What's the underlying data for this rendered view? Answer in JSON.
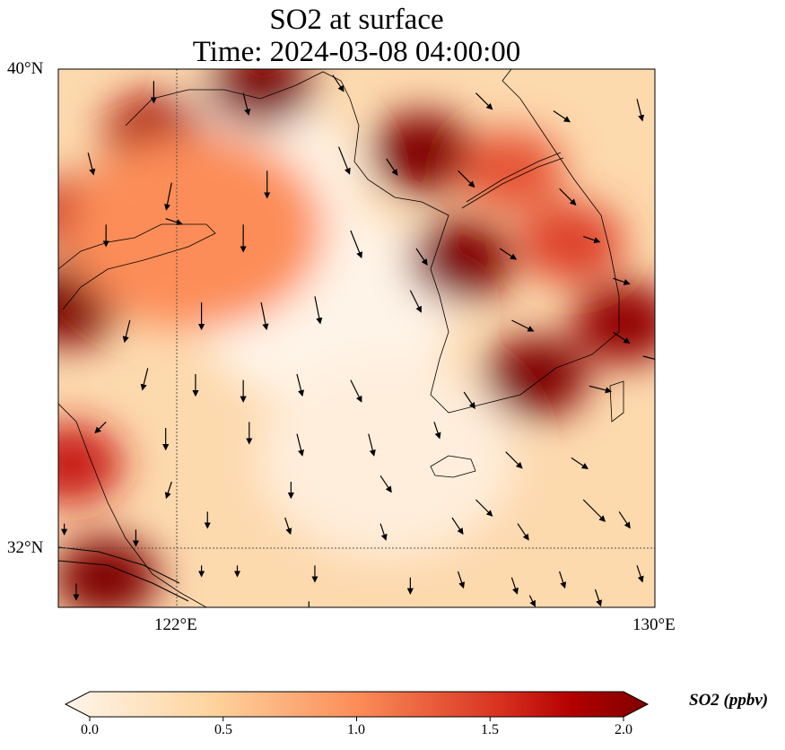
{
  "chart_data": {
    "type": "heatmap",
    "title": "SO2 at surface",
    "subtitle": "Time: 2024-03-08 04:00:00",
    "lon_range": [
      120,
      130
    ],
    "lat_range": [
      31,
      40
    ],
    "x_ticks": [
      {
        "value": 122,
        "label": "122°E"
      },
      {
        "value": 130,
        "label": "130°E"
      }
    ],
    "y_ticks": [
      {
        "value": 40,
        "label": "40°N"
      },
      {
        "value": 32,
        "label": "32°N"
      }
    ],
    "gridlines": {
      "lon": [
        122
      ],
      "lat": [
        32
      ]
    },
    "background_value": 0.3,
    "hotspots": [
      {
        "lon": 123.4,
        "lat": 39.7,
        "value": 2.0
      },
      {
        "lon": 126.1,
        "lat": 38.6,
        "value": 2.0
      },
      {
        "lon": 126.75,
        "lat": 36.8,
        "value": 2.0
      },
      {
        "lon": 128.0,
        "lat": 34.85,
        "value": 2.0
      },
      {
        "lon": 129.5,
        "lat": 35.75,
        "value": 1.9
      },
      {
        "lon": 120.15,
        "lat": 36.05,
        "value": 2.0
      },
      {
        "lon": 120.8,
        "lat": 31.5,
        "value": 2.0
      },
      {
        "lon": 120.2,
        "lat": 33.4,
        "value": 1.6
      },
      {
        "lon": 121.65,
        "lat": 38.9,
        "value": 1.8
      },
      {
        "lon": 121.3,
        "lat": 37.5,
        "value": 1.5
      },
      {
        "lon": 120.4,
        "lat": 37.55,
        "value": 1.6
      },
      {
        "lon": 128.6,
        "lat": 37.1,
        "value": 1.4
      },
      {
        "lon": 127.6,
        "lat": 38.3,
        "value": 1.3
      },
      {
        "lon": 122.3,
        "lat": 37.3,
        "value": 1.0
      }
    ],
    "low_zones": [
      {
        "lon": 124.5,
        "lat": 36.0,
        "value": 0.02
      },
      {
        "lon": 123.0,
        "lat": 38.0,
        "value": 0.05
      },
      {
        "lon": 125.5,
        "lat": 33.5,
        "value": 0.1
      }
    ],
    "wind_vectors": [
      [
        121.6,
        39.8,
        0,
        -0.4
      ],
      [
        123.1,
        39.6,
        0.1,
        -0.4
      ],
      [
        124.6,
        39.9,
        0.2,
        -0.3
      ],
      [
        127.0,
        39.6,
        0.3,
        -0.3
      ],
      [
        128.3,
        39.3,
        0.3,
        -0.2
      ],
      [
        129.7,
        39.5,
        0.1,
        -0.4
      ],
      [
        120.5,
        38.6,
        0.1,
        -0.4
      ],
      [
        121.9,
        38.1,
        -0.1,
        -0.5
      ],
      [
        123.5,
        38.3,
        0,
        -0.5
      ],
      [
        124.7,
        38.7,
        0.2,
        -0.5
      ],
      [
        125.5,
        38.5,
        0.2,
        -0.3
      ],
      [
        126.7,
        38.3,
        0.3,
        -0.3
      ],
      [
        128.4,
        38.0,
        0.3,
        -0.3
      ],
      [
        120.8,
        37.4,
        0,
        -0.4
      ],
      [
        121.8,
        37.5,
        0.3,
        -0.1
      ],
      [
        123.1,
        37.4,
        0,
        -0.5
      ],
      [
        124.9,
        37.3,
        0.2,
        -0.5
      ],
      [
        126.0,
        37.0,
        0.2,
        -0.3
      ],
      [
        127.4,
        37.0,
        0.3,
        -0.2
      ],
      [
        128.8,
        37.2,
        0.3,
        -0.1
      ],
      [
        129.3,
        36.5,
        0.3,
        -0.1
      ],
      [
        121.2,
        35.8,
        -0.1,
        -0.4
      ],
      [
        122.4,
        36.1,
        0,
        -0.5
      ],
      [
        123.4,
        36.1,
        0.1,
        -0.5
      ],
      [
        124.3,
        36.2,
        0.1,
        -0.5
      ],
      [
        125.9,
        36.3,
        0.2,
        -0.4
      ],
      [
        127.6,
        35.8,
        0.4,
        -0.2
      ],
      [
        129.3,
        35.6,
        0.3,
        -0.2
      ],
      [
        121.5,
        35.0,
        -0.1,
        -0.4
      ],
      [
        122.3,
        34.9,
        0,
        -0.4
      ],
      [
        123.1,
        34.8,
        0,
        -0.4
      ],
      [
        124.0,
        34.9,
        0.1,
        -0.4
      ],
      [
        124.9,
        34.8,
        0.2,
        -0.4
      ],
      [
        126.8,
        34.6,
        0.2,
        -0.3
      ],
      [
        128.9,
        34.7,
        0.4,
        -0.1
      ],
      [
        129.8,
        35.2,
        0.4,
        -0.1
      ],
      [
        120.8,
        34.1,
        -0.2,
        -0.2
      ],
      [
        121.8,
        34.0,
        0,
        -0.4
      ],
      [
        123.2,
        34.1,
        0,
        -0.4
      ],
      [
        124.0,
        33.9,
        0.1,
        -0.4
      ],
      [
        125.2,
        33.9,
        0.1,
        -0.4
      ],
      [
        126.3,
        34.1,
        0.1,
        -0.3
      ],
      [
        127.5,
        33.6,
        0.3,
        -0.3
      ],
      [
        128.6,
        33.5,
        0.3,
        -0.2
      ],
      [
        121.9,
        33.1,
        -0.1,
        -0.3
      ],
      [
        123.9,
        33.1,
        0,
        -0.3
      ],
      [
        125.4,
        33.2,
        0.2,
        -0.3
      ],
      [
        127.0,
        32.8,
        0.3,
        -0.3
      ],
      [
        128.8,
        32.8,
        0.4,
        -0.4
      ],
      [
        129.4,
        32.6,
        0.2,
        -0.3
      ],
      [
        120.1,
        32.4,
        0,
        -0.2
      ],
      [
        121.3,
        32.3,
        0,
        -0.3
      ],
      [
        122.5,
        32.6,
        0,
        -0.3
      ],
      [
        123.8,
        32.5,
        0.1,
        -0.3
      ],
      [
        125.4,
        32.4,
        0.1,
        -0.3
      ],
      [
        126.6,
        32.5,
        0.2,
        -0.3
      ],
      [
        127.7,
        32.4,
        0.2,
        -0.3
      ],
      [
        120.3,
        31.4,
        0,
        -0.3
      ],
      [
        122.4,
        31.7,
        0,
        -0.2
      ],
      [
        123.0,
        31.7,
        0,
        -0.2
      ],
      [
        124.3,
        31.7,
        0,
        -0.3
      ],
      [
        125.9,
        31.5,
        0,
        -0.3
      ],
      [
        126.7,
        31.6,
        0.1,
        -0.3
      ],
      [
        127.6,
        31.5,
        0.1,
        -0.3
      ],
      [
        128.4,
        31.6,
        0.1,
        -0.3
      ],
      [
        129.0,
        31.3,
        0.1,
        -0.3
      ],
      [
        129.7,
        31.7,
        0.1,
        -0.3
      ],
      [
        124.2,
        31.1,
        0,
        -0.2
      ],
      [
        127.9,
        31.2,
        0.1,
        -0.2
      ]
    ],
    "colorbar": {
      "label": "SO2 (ppbv)",
      "min": 0.0,
      "max": 2.0,
      "extend": "both",
      "ticks": [
        "0.0",
        "0.5",
        "1.0",
        "1.5",
        "2.0"
      ],
      "colors": [
        "#fff5eb",
        "#fdd49e",
        "#fc8d59",
        "#d7301f",
        "#b30000",
        "#7f0000"
      ]
    }
  }
}
